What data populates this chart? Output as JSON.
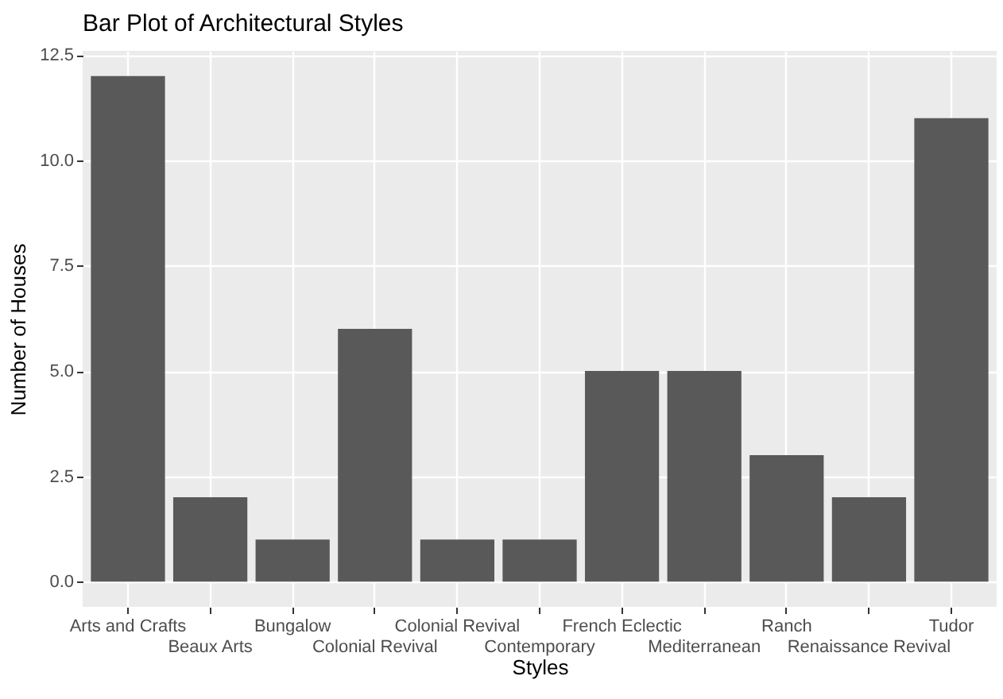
{
  "chart_data": {
    "type": "bar",
    "title": "Bar Plot of Architectural Styles",
    "xlabel": "Styles",
    "ylabel": "Number of Houses",
    "categories": [
      "Arts and Crafts",
      "Beaux Arts",
      "Bungalow",
      "Colonial Revival",
      "Colonial Revival",
      "Contemporary",
      "French Eclectic",
      "Mediterranean",
      "Ranch",
      "Renaissance Revival",
      "Tudor"
    ],
    "values": [
      12,
      2,
      1,
      6,
      1,
      1,
      5,
      5,
      3,
      2,
      11
    ],
    "color": "#595959",
    "ylim": [
      -0.6,
      12.6
    ],
    "yticks": [
      {
        "value": 0,
        "label": "0.0"
      },
      {
        "value": 2.5,
        "label": "2.5"
      },
      {
        "value": 5,
        "label": "5.0"
      },
      {
        "value": 7.5,
        "label": "7.5"
      },
      {
        "value": 10,
        "label": "10.0"
      },
      {
        "value": 12.5,
        "label": "12.5"
      }
    ],
    "grid": true
  }
}
